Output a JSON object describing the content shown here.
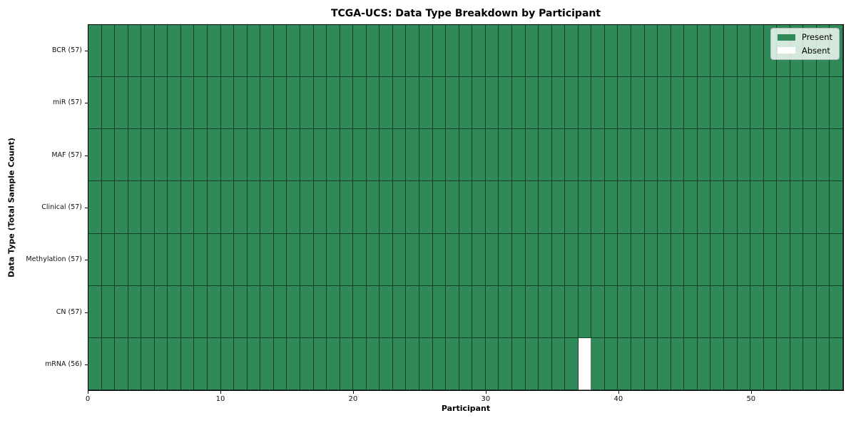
{
  "chart_data": {
    "type": "heatmap",
    "title": "TCGA-UCS: Data Type Breakdown by Participant",
    "xlabel": "Participant",
    "ylabel": "Data Type (Total Sample Count)",
    "rows": [
      {
        "label": "BCR (57)",
        "data_type": "BCR",
        "sample_count": 57
      },
      {
        "label": "miR (57)",
        "data_type": "miR",
        "sample_count": 57
      },
      {
        "label": "MAF (57)",
        "data_type": "MAF",
        "sample_count": 57
      },
      {
        "label": "Clinical (57)",
        "data_type": "Clinical",
        "sample_count": 57
      },
      {
        "label": "Methylation (57)",
        "data_type": "Methylation",
        "sample_count": 57
      },
      {
        "label": "CN (57)",
        "data_type": "CN",
        "sample_count": 57
      },
      {
        "label": "mRNA (56)",
        "data_type": "mRNA",
        "sample_count": 56
      }
    ],
    "n_participants": 57,
    "x_ticks": [
      0,
      10,
      20,
      30,
      40,
      50
    ],
    "absent_cells": [
      {
        "row_label": "mRNA (56)",
        "row_index": 6,
        "participant_index": 37
      }
    ],
    "legend": [
      {
        "label": "Present",
        "color": "#2E8B57"
      },
      {
        "label": "Absent",
        "color": "#FFFFFF"
      }
    ],
    "colors": {
      "present": "#2E8B57",
      "absent": "#FFFFFF"
    },
    "grid": true,
    "legend_position": "upper right"
  }
}
